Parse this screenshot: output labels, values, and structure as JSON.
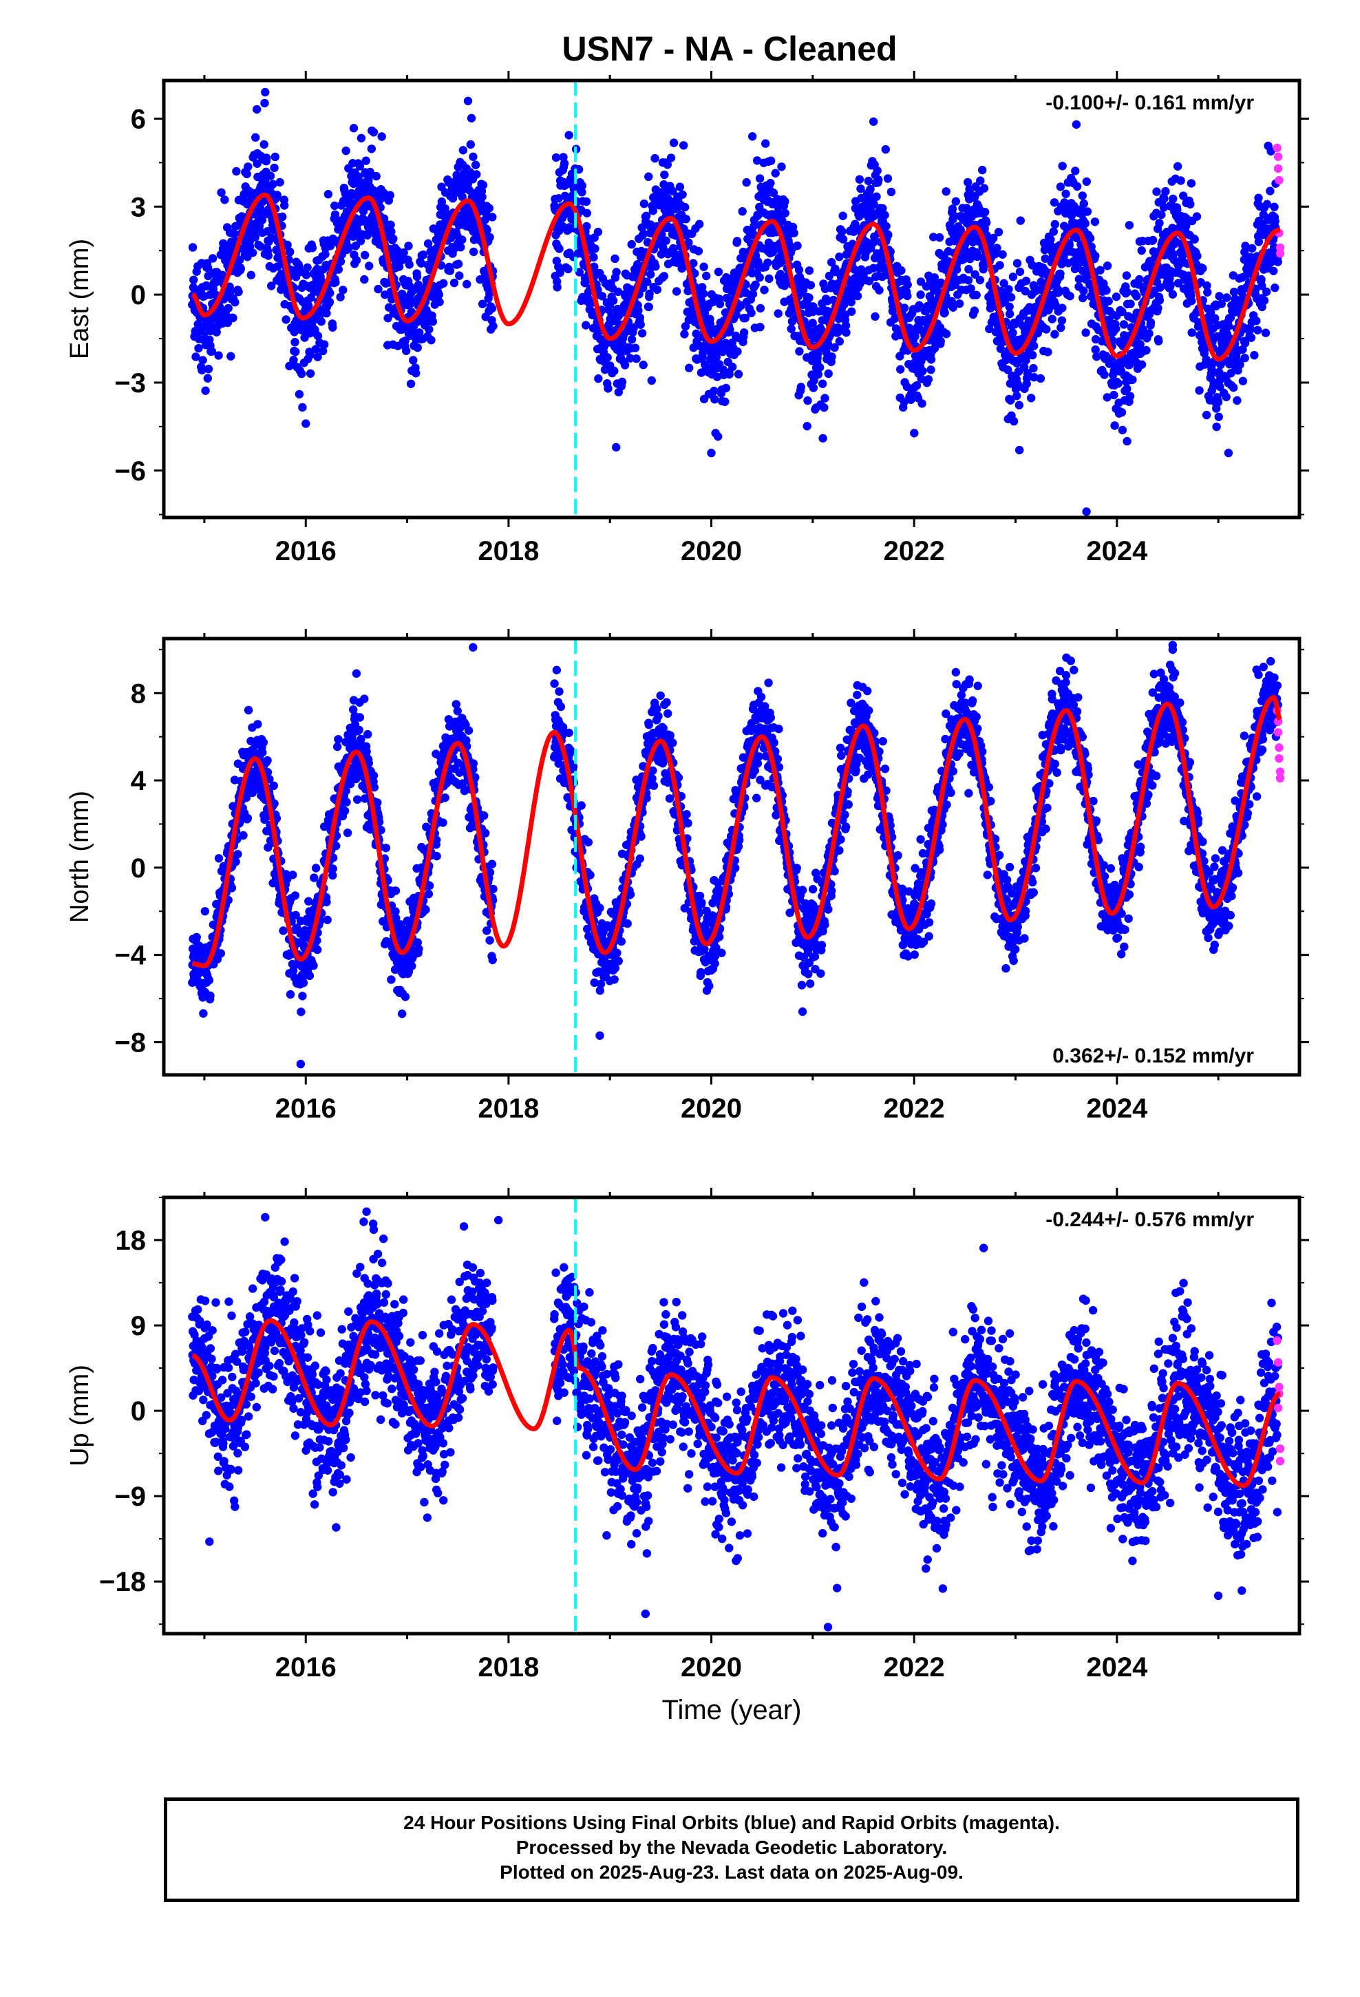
{
  "title": "USN7  - NA - Cleaned",
  "xlabel": "Time (year)",
  "footer": {
    "line1": "24 Hour Positions Using Final Orbits (blue) and Rapid Orbits (magenta).",
    "line2": "Processed by the Nevada Geodetic Laboratory.",
    "line3": "Plotted on 2025-Aug-23. Last data on 2025-Aug-09."
  },
  "colors": {
    "final": "#0000ff",
    "rapid": "#ff33ff",
    "model": "#ff0000",
    "break": "#00ffff"
  },
  "chart_data": [
    {
      "type": "scatter",
      "ylabel": "East (mm)",
      "rate": "-0.100+/- 0.161 mm/yr",
      "rate_position": "top-right",
      "xlim": [
        2014.6,
        2025.8
      ],
      "ylim": [
        -7.6,
        7.3
      ],
      "xticks": [
        2016,
        2018,
        2020,
        2022,
        2024
      ],
      "yticks": [
        -6,
        -3,
        0,
        3,
        6
      ],
      "ytick_labels": [
        "−6",
        "−3",
        "0",
        "3",
        "6"
      ],
      "equipment_change": 2018.66,
      "data_range": [
        2014.88,
        2025.61
      ],
      "gap": [
        2017.85,
        2018.45
      ],
      "model": {
        "annual_amplitude": 2.4,
        "semiannual_amplitude": 0.35,
        "peak_time_of_year": 0.62,
        "offset": 0.4,
        "scatter_sigma": 1.05,
        "wrap_points": [
          [
            2014.88,
            0.0
          ],
          [
            2015.0,
            -0.7
          ],
          [
            2015.6,
            3.4
          ],
          [
            2015.97,
            -0.8
          ],
          [
            2016.62,
            3.3
          ],
          [
            2017.0,
            -0.9
          ],
          [
            2017.6,
            3.2
          ],
          [
            2018.0,
            -1.0
          ],
          [
            2018.6,
            3.1
          ],
          [
            2019.0,
            -1.5
          ],
          [
            2019.6,
            2.6
          ],
          [
            2020.0,
            -1.6
          ],
          [
            2020.6,
            2.5
          ],
          [
            2021.0,
            -1.8
          ],
          [
            2021.6,
            2.4
          ],
          [
            2022.0,
            -1.9
          ],
          [
            2022.6,
            2.3
          ],
          [
            2023.0,
            -2.0
          ],
          [
            2023.6,
            2.2
          ],
          [
            2024.0,
            -2.1
          ],
          [
            2024.6,
            2.1
          ],
          [
            2025.0,
            -2.2
          ],
          [
            2025.6,
            2.2
          ]
        ]
      },
      "rapid_points": [
        [
          2025.58,
          5.0
        ],
        [
          2025.59,
          4.3
        ],
        [
          2025.6,
          3.9
        ],
        [
          2025.6,
          2.1
        ],
        [
          2025.61,
          1.6
        ],
        [
          2025.61,
          1.4
        ],
        [
          2025.59,
          4.7
        ]
      ],
      "outliers": [
        [
          2015.6,
          6.9
        ],
        [
          2017.6,
          6.6
        ],
        [
          2021.6,
          5.9
        ],
        [
          2023.6,
          5.8
        ],
        [
          2023.7,
          -7.4
        ],
        [
          2016.0,
          -4.4
        ],
        [
          2020.0,
          -5.4
        ],
        [
          2025.1,
          -5.4
        ],
        [
          2024.1,
          -5.0
        ],
        [
          2021.1,
          -4.9
        ]
      ]
    },
    {
      "type": "scatter",
      "ylabel": "North (mm)",
      "rate": "0.362+/- 0.152 mm/yr",
      "rate_position": "bottom-right",
      "xlim": [
        2014.6,
        2025.8
      ],
      "ylim": [
        -9.5,
        10.5
      ],
      "xticks": [
        2016,
        2018,
        2020,
        2022,
        2024
      ],
      "yticks": [
        -8,
        -4,
        0,
        4,
        8
      ],
      "ytick_labels": [
        "−8",
        "−4",
        "0",
        "4",
        "8"
      ],
      "equipment_change": 2018.66,
      "data_range": [
        2014.88,
        2025.61
      ],
      "gap": [
        2017.85,
        2018.45
      ],
      "model": {
        "scatter_sigma": 0.95,
        "wrap_points": [
          [
            2014.88,
            -4.4
          ],
          [
            2015.0,
            -4.5
          ],
          [
            2015.5,
            5.0
          ],
          [
            2015.95,
            -4.2
          ],
          [
            2016.5,
            5.3
          ],
          [
            2016.95,
            -3.9
          ],
          [
            2017.5,
            5.7
          ],
          [
            2017.95,
            -3.6
          ],
          [
            2018.45,
            6.2
          ],
          [
            2018.95,
            -3.9
          ],
          [
            2019.5,
            5.8
          ],
          [
            2019.95,
            -3.5
          ],
          [
            2020.5,
            6.0
          ],
          [
            2020.95,
            -3.2
          ],
          [
            2021.5,
            6.5
          ],
          [
            2021.95,
            -2.8
          ],
          [
            2022.5,
            6.8
          ],
          [
            2022.95,
            -2.4
          ],
          [
            2023.5,
            7.2
          ],
          [
            2023.95,
            -2.1
          ],
          [
            2024.5,
            7.5
          ],
          [
            2024.95,
            -1.8
          ],
          [
            2025.55,
            7.8
          ],
          [
            2025.61,
            6.8
          ]
        ]
      },
      "rapid_points": [
        [
          2025.58,
          7.2
        ],
        [
          2025.59,
          6.2
        ],
        [
          2025.6,
          5.5
        ],
        [
          2025.6,
          5.0
        ],
        [
          2025.61,
          4.4
        ],
        [
          2025.61,
          4.1
        ],
        [
          2025.59,
          6.7
        ]
      ],
      "outliers": [
        [
          2017.65,
          10.1
        ],
        [
          2024.55,
          10.2
        ],
        [
          2016.5,
          8.9
        ],
        [
          2015.95,
          -9.0
        ],
        [
          2018.9,
          -7.7
        ],
        [
          2020.9,
          -6.6
        ],
        [
          2016.95,
          -6.7
        ]
      ]
    },
    {
      "type": "scatter",
      "ylabel": "Up (mm)",
      "rate": "-0.244+/- 0.576 mm/yr",
      "rate_position": "top-right",
      "xlim": [
        2014.6,
        2025.8
      ],
      "ylim": [
        -23.5,
        22.5
      ],
      "xticks": [
        2016,
        2018,
        2020,
        2022,
        2024
      ],
      "yticks": [
        -18,
        -9,
        0,
        9,
        18
      ],
      "ytick_labels": [
        "−18",
        "−9",
        "0",
        "9",
        "18"
      ],
      "equipment_change": 2018.66,
      "data_range": [
        2014.88,
        2025.61
      ],
      "gap": [
        2017.85,
        2018.45
      ],
      "model": {
        "scatter_sigma": 3.6,
        "wrap_points": [
          [
            2014.88,
            5.8
          ],
          [
            2015.25,
            -1.0
          ],
          [
            2015.65,
            9.5
          ],
          [
            2016.25,
            -1.5
          ],
          [
            2016.65,
            9.4
          ],
          [
            2017.25,
            -1.6
          ],
          [
            2017.65,
            9.1
          ],
          [
            2018.25,
            -1.9
          ],
          [
            2018.6,
            8.5
          ],
          [
            2018.7,
            4.5
          ],
          [
            2019.25,
            -6.2
          ],
          [
            2019.6,
            3.8
          ],
          [
            2020.25,
            -6.6
          ],
          [
            2020.6,
            3.5
          ],
          [
            2021.25,
            -6.8
          ],
          [
            2021.6,
            3.4
          ],
          [
            2022.25,
            -7.2
          ],
          [
            2022.6,
            3.2
          ],
          [
            2023.25,
            -7.4
          ],
          [
            2023.6,
            3.1
          ],
          [
            2024.25,
            -7.6
          ],
          [
            2024.6,
            2.9
          ],
          [
            2025.25,
            -7.9
          ],
          [
            2025.61,
            1.8
          ]
        ]
      },
      "rapid_points": [
        [
          2025.58,
          7.4
        ],
        [
          2025.59,
          5.1
        ],
        [
          2025.6,
          2.5
        ],
        [
          2025.6,
          1.8
        ],
        [
          2025.61,
          -4.0
        ],
        [
          2025.61,
          -5.3
        ],
        [
          2025.59,
          0.3
        ]
      ],
      "outliers": [
        [
          2016.6,
          21.0
        ],
        [
          2015.6,
          20.4
        ],
        [
          2017.9,
          20.1
        ],
        [
          2019.35,
          -21.4
        ],
        [
          2021.15,
          -22.8
        ],
        [
          2025.0,
          -19.5
        ],
        [
          2015.05,
          -13.8
        ],
        [
          2016.3,
          -12.3
        ]
      ]
    }
  ]
}
